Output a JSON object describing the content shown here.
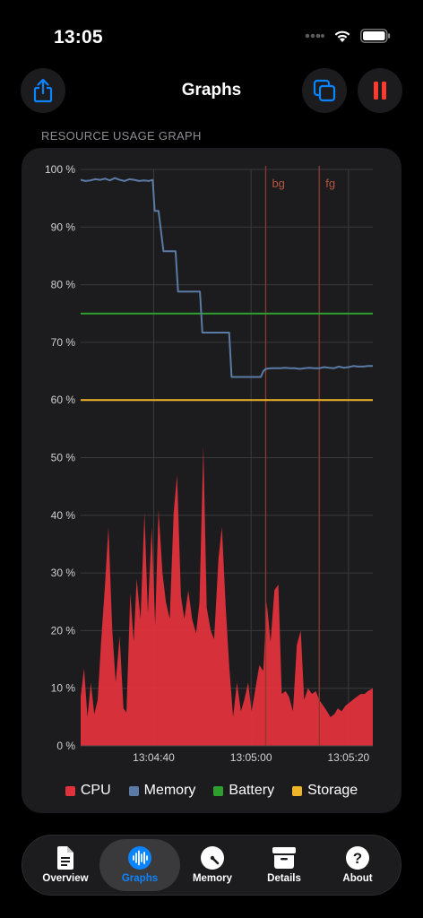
{
  "status_bar": {
    "time": "13:05"
  },
  "nav": {
    "title": "Graphs"
  },
  "section_label": "RESOURCE USAGE GRAPH",
  "colors": {
    "cpu": "#e0323c",
    "memory": "#5b7ba6",
    "battery": "#2e9e2e",
    "storage": "#f0b429",
    "event_line": "#8a3a2e",
    "accent": "#0a84ff",
    "pause": "#ff3b30"
  },
  "chart_data": {
    "type": "area",
    "title": "",
    "xlabel": "",
    "ylabel": "",
    "ylim": [
      0,
      100
    ],
    "yticks": [
      "0 %",
      "10 %",
      "20 %",
      "30 %",
      "40 %",
      "50 %",
      "60 %",
      "70 %",
      "80 %",
      "90 %",
      "100 %"
    ],
    "xlim": [
      0,
      60
    ],
    "x_ticks": [
      {
        "x": 15,
        "label": "13:04:40"
      },
      {
        "x": 35,
        "label": "13:05:00"
      },
      {
        "x": 55,
        "label": "13:05:20"
      }
    ],
    "grid": true,
    "legend_position": "bottom",
    "markers": [
      {
        "x": 38,
        "label": "bg"
      },
      {
        "x": 49,
        "label": "fg"
      }
    ],
    "series": [
      {
        "name": "CPU",
        "kind": "area",
        "x": [
          0,
          0.7,
          1.4,
          2.1,
          2.8,
          3.5,
          4.2,
          5,
          5.7,
          6.5,
          7.2,
          8,
          8.8,
          9.4,
          10.2,
          10.9,
          11.5,
          12.3,
          13.1,
          13.8,
          14.6,
          15.3,
          16,
          16.8,
          17.5,
          18.3,
          19.1,
          19.8,
          20.6,
          21.3,
          22.1,
          22.9,
          23.7,
          24.4,
          25.2,
          25.9,
          26.7,
          27.4,
          28.3,
          29,
          29.8,
          30.5,
          31.3,
          32.1,
          32.9,
          33.6,
          34.4,
          35.1,
          35.9,
          36.7,
          37.5,
          38.2,
          39,
          39.8,
          40.6,
          41.3,
          42.1,
          42.8,
          43.6,
          44.4,
          45.2,
          45.9,
          46.7,
          47.5,
          48.3,
          49,
          49.8,
          50.6,
          51.3,
          52.1,
          52.8,
          53.6,
          54.4,
          55.2,
          55.9,
          56.7,
          57.5,
          58.3,
          59,
          60
        ],
        "values": [
          8.5,
          13.5,
          5,
          11,
          5.5,
          8,
          18,
          28,
          38,
          20,
          11,
          19,
          6.5,
          5.8,
          26.5,
          18,
          29,
          22,
          40.5,
          23,
          38,
          21,
          41,
          30,
          25,
          22,
          40.5,
          47,
          26,
          22,
          27,
          22,
          19.5,
          25,
          52,
          24,
          20,
          18.5,
          32.5,
          38,
          24,
          14,
          5,
          11,
          6,
          8,
          11,
          6,
          10,
          14,
          13,
          25,
          18,
          27,
          28,
          9,
          9.5,
          8.5,
          6,
          17.5,
          20,
          8,
          10,
          9,
          9.5,
          8,
          7,
          6,
          5,
          5.5,
          6.5,
          6,
          7,
          7.5,
          8,
          8.5,
          9,
          9,
          9.5,
          10
        ]
      },
      {
        "name": "Memory",
        "kind": "line",
        "x": [
          0,
          1,
          2,
          3,
          4,
          5,
          6,
          7,
          8,
          9,
          10,
          11,
          12,
          13,
          14,
          14.8,
          15.2,
          16,
          17,
          18,
          19,
          19.5,
          20,
          21,
          22,
          23,
          24.5,
          25,
          26,
          27,
          28,
          29,
          30.5,
          31,
          32,
          33,
          34,
          35,
          36,
          37,
          37.5,
          38,
          39,
          40,
          41,
          42,
          43,
          44,
          45,
          46,
          47,
          48,
          49,
          50,
          51,
          52,
          53,
          54,
          55,
          56,
          57,
          58,
          59,
          60
        ],
        "values": [
          98.2,
          98,
          98.1,
          98.3,
          98.2,
          98.4,
          98.1,
          98.5,
          98.2,
          98,
          98.3,
          98.2,
          98,
          98.1,
          98,
          98.2,
          92.8,
          92.8,
          85.8,
          85.8,
          85.8,
          85.8,
          78.8,
          78.8,
          78.8,
          78.8,
          78.8,
          71.7,
          71.7,
          71.7,
          71.7,
          71.7,
          71.7,
          64,
          64,
          64,
          64,
          64,
          64,
          64,
          65,
          65.4,
          65.5,
          65.5,
          65.5,
          65.6,
          65.5,
          65.5,
          65.4,
          65.5,
          65.6,
          65.5,
          65.5,
          65.7,
          65.6,
          65.5,
          65.8,
          65.6,
          65.7,
          65.9,
          65.8,
          65.8,
          65.9,
          65.9
        ]
      },
      {
        "name": "Battery",
        "kind": "hline",
        "value": 75
      },
      {
        "name": "Storage",
        "kind": "hline",
        "value": 60
      }
    ]
  },
  "legend": [
    {
      "label": "CPU",
      "color": "#e0323c"
    },
    {
      "label": "Memory",
      "color": "#5b7ba6"
    },
    {
      "label": "Battery",
      "color": "#2e9e2e"
    },
    {
      "label": "Storage",
      "color": "#f0b429"
    }
  ],
  "tabs": [
    {
      "label": "Overview",
      "icon": "document-icon",
      "active": false
    },
    {
      "label": "Graphs",
      "icon": "waveform-icon",
      "active": true
    },
    {
      "label": "Memory",
      "icon": "gauge-icon",
      "active": false
    },
    {
      "label": "Details",
      "icon": "archive-box-icon",
      "active": false
    },
    {
      "label": "About",
      "icon": "question-icon",
      "active": false
    }
  ]
}
